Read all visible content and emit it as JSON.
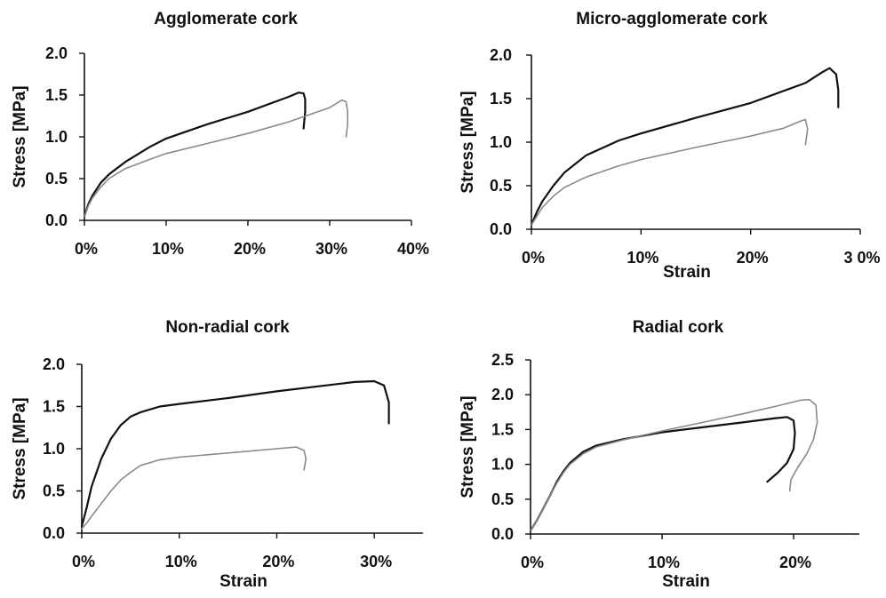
{
  "chart_data": [
    {
      "type": "line",
      "title": "Agglomerate cork",
      "xlabel": "",
      "ylabel": "Stress [MPa]",
      "xlim": [
        0,
        0.4
      ],
      "ylim": [
        0,
        2.0
      ],
      "xticks": [
        0,
        0.1,
        0.2,
        0.3,
        0.4
      ],
      "xtick_labels": [
        "0%",
        "10%",
        "20%",
        "30%",
        "40%"
      ],
      "yticks": [
        0,
        0.5,
        1.0,
        1.5,
        2.0
      ],
      "ytick_labels": [
        "0.0",
        "0.5",
        "1.0",
        "1.5",
        "2.0"
      ],
      "grid": false,
      "series": [
        {
          "color": "#111111",
          "x": [
            0,
            0.005,
            0.01,
            0.02,
            0.03,
            0.05,
            0.08,
            0.1,
            0.15,
            0.2,
            0.25,
            0.262,
            0.268,
            0.27,
            0.27,
            0.268
          ],
          "y": [
            0.05,
            0.2,
            0.3,
            0.45,
            0.55,
            0.7,
            0.88,
            0.98,
            1.15,
            1.3,
            1.48,
            1.53,
            1.52,
            1.45,
            1.3,
            1.1
          ]
        },
        {
          "color": "#8a8a8a",
          "x": [
            0,
            0.005,
            0.01,
            0.02,
            0.03,
            0.05,
            0.08,
            0.1,
            0.15,
            0.2,
            0.25,
            0.3,
            0.315,
            0.32,
            0.322,
            0.322,
            0.32
          ],
          "y": [
            0.05,
            0.18,
            0.27,
            0.4,
            0.5,
            0.62,
            0.73,
            0.8,
            0.92,
            1.04,
            1.18,
            1.35,
            1.44,
            1.42,
            1.3,
            1.15,
            1.0
          ]
        }
      ]
    },
    {
      "type": "line",
      "title": "Micro-agglomerate cork",
      "xlabel": "Strain",
      "ylabel": "Stress [MPa]",
      "xlim": [
        0,
        0.3
      ],
      "ylim": [
        0,
        2.0
      ],
      "xticks": [
        0,
        0.1,
        0.2,
        0.3
      ],
      "xtick_labels": [
        "0%",
        "10%",
        "20%",
        "3 0%"
      ],
      "yticks": [
        0,
        0.5,
        1.0,
        1.5,
        2.0
      ],
      "ytick_labels": [
        "0.0",
        "0.5",
        "1.0",
        "1.5",
        "2.0"
      ],
      "grid": false,
      "series": [
        {
          "color": "#111111",
          "x": [
            0,
            0.005,
            0.01,
            0.02,
            0.03,
            0.05,
            0.08,
            0.1,
            0.15,
            0.2,
            0.25,
            0.265,
            0.272,
            0.278,
            0.28,
            0.28
          ],
          "y": [
            0.05,
            0.2,
            0.32,
            0.5,
            0.65,
            0.85,
            1.02,
            1.1,
            1.28,
            1.45,
            1.68,
            1.8,
            1.85,
            1.78,
            1.6,
            1.4
          ]
        },
        {
          "color": "#8a8a8a",
          "x": [
            0,
            0.005,
            0.01,
            0.02,
            0.03,
            0.05,
            0.08,
            0.1,
            0.15,
            0.2,
            0.23,
            0.245,
            0.25,
            0.252,
            0.25
          ],
          "y": [
            0.05,
            0.15,
            0.25,
            0.38,
            0.48,
            0.6,
            0.73,
            0.8,
            0.94,
            1.07,
            1.16,
            1.24,
            1.26,
            1.15,
            0.97
          ]
        }
      ]
    },
    {
      "type": "line",
      "title": "Non-radial cork",
      "xlabel": "Strain",
      "ylabel": "Stress [MPa]",
      "xlim": [
        0,
        0.35
      ],
      "ylim": [
        0,
        2.0
      ],
      "xticks": [
        0,
        0.1,
        0.2,
        0.3
      ],
      "xtick_labels": [
        "0%",
        "10%",
        "20%",
        "30%"
      ],
      "yticks": [
        0,
        0.5,
        1.0,
        1.5,
        2.0
      ],
      "ytick_labels": [
        "0.0",
        "0.5",
        "1.0",
        "1.5",
        "2.0"
      ],
      "grid": false,
      "series": [
        {
          "color": "#111111",
          "x": [
            0,
            0.005,
            0.01,
            0.02,
            0.03,
            0.04,
            0.05,
            0.06,
            0.08,
            0.1,
            0.15,
            0.2,
            0.25,
            0.28,
            0.3,
            0.31,
            0.315,
            0.315
          ],
          "y": [
            0.08,
            0.3,
            0.55,
            0.88,
            1.12,
            1.28,
            1.38,
            1.43,
            1.5,
            1.53,
            1.6,
            1.68,
            1.75,
            1.79,
            1.8,
            1.75,
            1.55,
            1.3
          ]
        },
        {
          "color": "#8a8a8a",
          "x": [
            0,
            0.005,
            0.01,
            0.02,
            0.03,
            0.04,
            0.05,
            0.06,
            0.08,
            0.1,
            0.15,
            0.2,
            0.22,
            0.228,
            0.23,
            0.228
          ],
          "y": [
            0.05,
            0.12,
            0.2,
            0.35,
            0.5,
            0.63,
            0.72,
            0.8,
            0.87,
            0.9,
            0.95,
            1.0,
            1.02,
            0.98,
            0.88,
            0.75
          ]
        }
      ]
    },
    {
      "type": "line",
      "title": "Radial cork",
      "xlabel": "Strain",
      "ylabel": "Stress [MPa]",
      "xlim": [
        0,
        0.25
      ],
      "ylim": [
        0,
        2.5
      ],
      "xticks": [
        0,
        0.1,
        0.2
      ],
      "xtick_labels": [
        "0%",
        "10%",
        "20%"
      ],
      "yticks": [
        0,
        0.5,
        1.0,
        1.5,
        2.0,
        2.5
      ],
      "ytick_labels": [
        "0.0",
        "0.5",
        "1.0",
        "1.5",
        "2.0",
        "2.5"
      ],
      "grid": false,
      "series": [
        {
          "color": "#111111",
          "x": [
            0,
            0.005,
            0.01,
            0.015,
            0.02,
            0.025,
            0.03,
            0.04,
            0.05,
            0.07,
            0.1,
            0.13,
            0.16,
            0.185,
            0.195,
            0.2,
            0.201,
            0.2,
            0.195,
            0.188,
            0.18
          ],
          "y": [
            0.05,
            0.2,
            0.38,
            0.56,
            0.75,
            0.9,
            1.02,
            1.18,
            1.27,
            1.36,
            1.46,
            1.53,
            1.6,
            1.66,
            1.68,
            1.63,
            1.45,
            1.22,
            1.02,
            0.88,
            0.75
          ]
        },
        {
          "color": "#8a8a8a",
          "x": [
            0,
            0.005,
            0.01,
            0.015,
            0.02,
            0.025,
            0.03,
            0.04,
            0.05,
            0.07,
            0.1,
            0.13,
            0.16,
            0.19,
            0.205,
            0.212,
            0.217,
            0.218,
            0.215,
            0.21,
            0.203,
            0.198,
            0.197
          ],
          "y": [
            0.05,
            0.2,
            0.38,
            0.56,
            0.73,
            0.88,
            1.0,
            1.15,
            1.25,
            1.35,
            1.48,
            1.6,
            1.72,
            1.85,
            1.92,
            1.93,
            1.85,
            1.6,
            1.35,
            1.15,
            0.95,
            0.78,
            0.62
          ]
        }
      ]
    }
  ]
}
